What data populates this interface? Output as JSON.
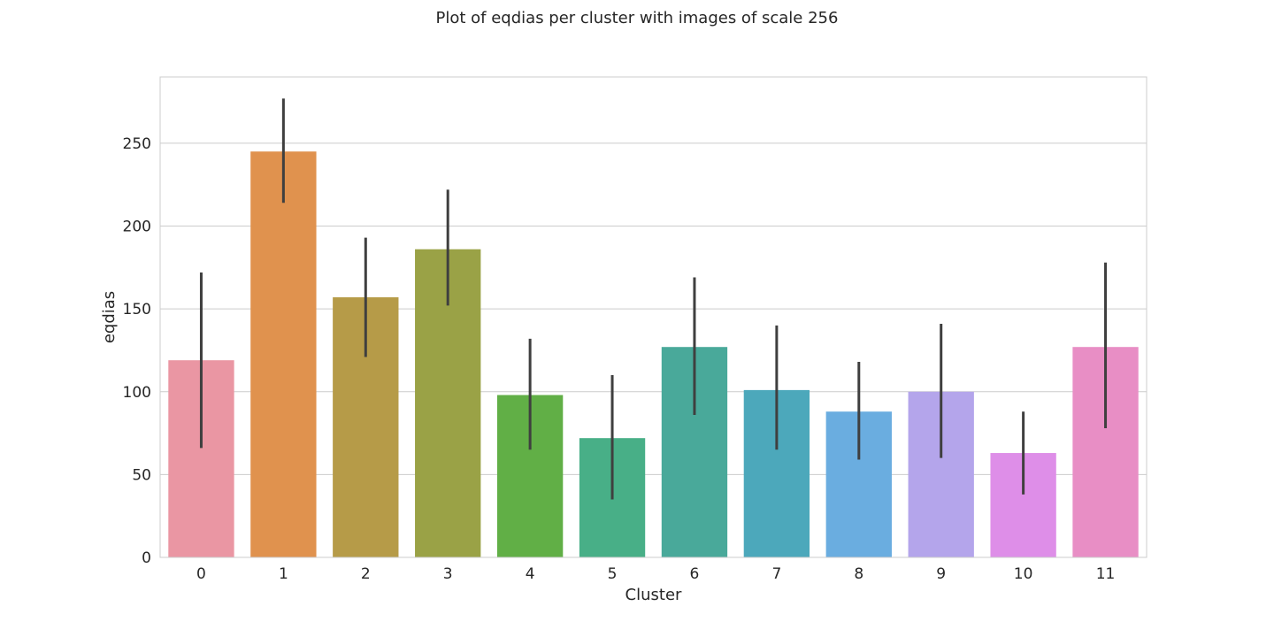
{
  "chart_data": {
    "type": "bar",
    "title": "Plot of eqdias per cluster with images of scale 256",
    "xlabel": "Cluster",
    "ylabel": "eqdias",
    "categories": [
      "0",
      "1",
      "2",
      "3",
      "4",
      "5",
      "6",
      "7",
      "8",
      "9",
      "10",
      "11"
    ],
    "values": [
      119,
      245,
      157,
      186,
      98,
      72,
      127,
      101,
      88,
      100,
      63,
      127
    ],
    "error_low": [
      66,
      214,
      121,
      152,
      65,
      35,
      86,
      65,
      59,
      60,
      38,
      78
    ],
    "error_high": [
      172,
      277,
      193,
      222,
      132,
      110,
      169,
      140,
      118,
      141,
      88,
      178
    ],
    "colors": [
      "#EA96A3",
      "#E0924E",
      "#B69B48",
      "#9AA246",
      "#61AF46",
      "#48AF87",
      "#49A99A",
      "#4CA8BB",
      "#6AADE0",
      "#B4A5EB",
      "#DE8EE8",
      "#E88EC5"
    ],
    "ylim": [
      0,
      290
    ],
    "yticks": [
      0,
      50,
      100,
      150,
      200,
      250
    ],
    "grid": true,
    "legend": "none"
  }
}
